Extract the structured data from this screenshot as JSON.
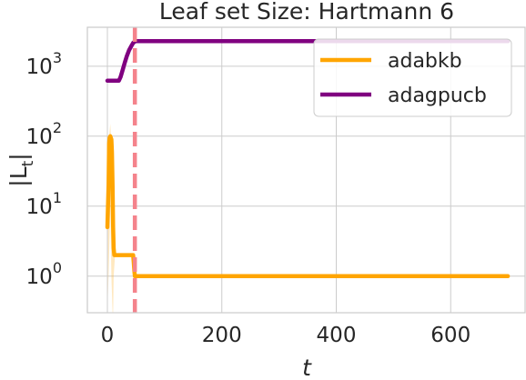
{
  "chart_data": {
    "type": "line",
    "title": "Leaf set Size: Hartmann 6",
    "xlabel": "t",
    "ylabel": "|L_t|",
    "xlim": [
      -35,
      730
    ],
    "ylim": [
      0.3,
      3600
    ],
    "yscale": "log",
    "grid": true,
    "legend_position": "top-right",
    "x_ticks": [
      0,
      200,
      400,
      600
    ],
    "x_tick_labels": [
      "0",
      "200",
      "400",
      "600"
    ],
    "y_ticks": [
      1,
      10,
      100,
      1000
    ],
    "y_tick_bases": [
      "10",
      "10",
      "10",
      "10"
    ],
    "y_tick_exponents": [
      "0",
      "1",
      "2",
      "3"
    ],
    "vline": {
      "x": 48,
      "color": "#f4838c",
      "style": "dashed"
    },
    "series": [
      {
        "name": "adabkb",
        "color": "#ffa500",
        "x": [
          0,
          2,
          3,
          4,
          5,
          7,
          8,
          9,
          10,
          11,
          12,
          14,
          20,
          30,
          40,
          45,
          46,
          47,
          48,
          50,
          60,
          100,
          200,
          300,
          400,
          500,
          600,
          700
        ],
        "y": [
          5,
          20,
          80,
          95,
          100,
          90,
          60,
          20,
          5,
          2.5,
          2,
          2,
          2,
          2,
          2,
          2,
          1.6,
          1.2,
          1,
          1,
          1,
          1,
          1,
          1,
          1,
          1,
          1,
          1
        ],
        "band_x": [
          1,
          3,
          5,
          7,
          9,
          10,
          11,
          13
        ],
        "band_lo": [
          0.5,
          2,
          10,
          1,
          0.3,
          0.3,
          1,
          1.8
        ],
        "band_hi": [
          20,
          100,
          150,
          80,
          40,
          10,
          3,
          2.2
        ]
      },
      {
        "name": "adagpucb",
        "color": "#800080",
        "x": [
          0,
          10,
          20,
          23,
          26,
          30,
          34,
          38,
          42,
          45,
          48,
          50,
          100,
          200,
          300,
          400,
          500,
          600,
          700
        ],
        "y": [
          620,
          620,
          620,
          700,
          850,
          1100,
          1400,
          1700,
          1950,
          2150,
          2250,
          2280,
          2280,
          2280,
          2280,
          2280,
          2280,
          2280,
          2280
        ]
      }
    ]
  }
}
